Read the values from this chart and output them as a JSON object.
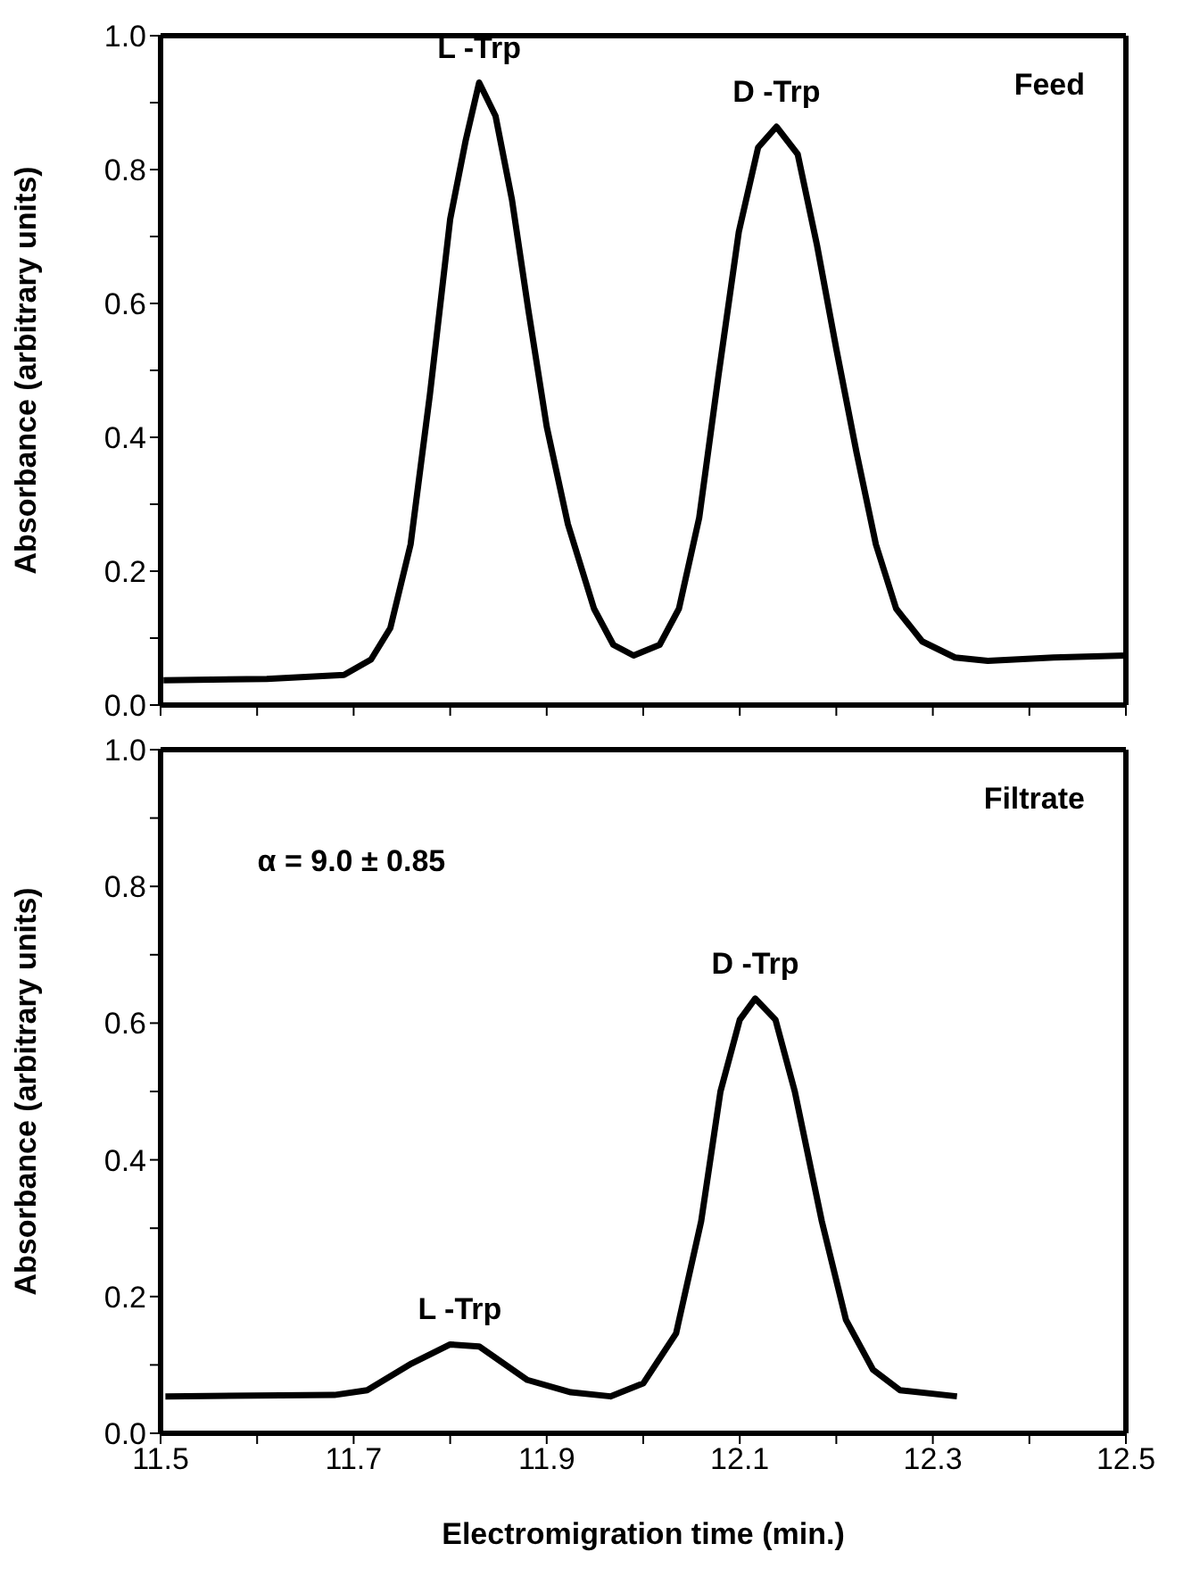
{
  "chart_data": [
    {
      "type": "line",
      "ylabel": "Absorbance (arbitrary units)",
      "annotations": [
        "Feed",
        {
          "text": "L -Trp",
          "x": 11.83,
          "y": 0.93
        },
        {
          "text": "D -Trp",
          "x": 12.138,
          "y": 0.864
        }
      ],
      "x": [
        11.503,
        11.61,
        11.69,
        11.718,
        11.738,
        11.759,
        11.779,
        11.8,
        11.816,
        11.83,
        11.847,
        11.864,
        11.881,
        11.9,
        11.922,
        11.949,
        11.969,
        11.99,
        12.017,
        12.037,
        12.058,
        12.078,
        12.099,
        12.119,
        12.138,
        12.16,
        12.18,
        12.2,
        12.221,
        12.241,
        12.262,
        12.289,
        12.323,
        12.357,
        12.425,
        12.5
      ],
      "values": [
        0.037,
        0.039,
        0.045,
        0.068,
        0.115,
        0.24,
        0.464,
        0.726,
        0.843,
        0.93,
        0.88,
        0.755,
        0.59,
        0.416,
        0.27,
        0.144,
        0.09,
        0.074,
        0.09,
        0.144,
        0.28,
        0.493,
        0.707,
        0.833,
        0.864,
        0.823,
        0.687,
        0.532,
        0.377,
        0.24,
        0.144,
        0.095,
        0.071,
        0.066,
        0.071,
        0.074
      ],
      "color": "#000000",
      "marker": "none",
      "line_style": "solid",
      "tick_labels": "y",
      "xlim": [
        11.5,
        12.5
      ],
      "xticks": [
        {
          "value": 11.5,
          "label": null
        },
        {
          "value": 11.6,
          "label": null
        },
        {
          "value": 11.7,
          "label": null
        },
        {
          "value": 11.8,
          "label": null
        },
        {
          "value": 11.9,
          "label": null
        },
        {
          "value": 12.0,
          "label": null
        },
        {
          "value": 12.1,
          "label": null
        },
        {
          "value": 12.2,
          "label": null
        },
        {
          "value": 12.3,
          "label": null
        },
        {
          "value": 12.4,
          "label": null
        },
        {
          "value": 12.5,
          "label": null
        }
      ],
      "ylim": [
        0,
        1.0
      ],
      "yticks": [
        {
          "value": 0,
          "label": "0.0"
        },
        {
          "value": 0.1,
          "label": null
        },
        0.2,
        {
          "value": 0.3,
          "label": null
        },
        0.4,
        {
          "value": 0.5,
          "label": null
        },
        0.6,
        {
          "value": 0.7,
          "label": null
        },
        0.8,
        {
          "value": 0.9,
          "label": null
        },
        {
          "value": 1.0,
          "label": "1.0"
        }
      ]
    },
    {
      "type": "line",
      "ylabel": "Absorbance (arbitrary units)",
      "xlabel": "Electromigration time (min.)",
      "annotations": [
        "Filtrate",
        "α = 9.0 ± 0.85",
        {
          "text": "L -Trp",
          "x": 11.81,
          "y": 0.13
        },
        {
          "text": "D -Trp",
          "x": 12.116,
          "y": 0.636
        }
      ],
      "x": [
        11.505,
        11.68,
        11.714,
        11.76,
        11.8,
        11.83,
        11.88,
        11.925,
        11.966,
        12.0,
        12.034,
        12.06,
        12.08,
        12.1,
        12.116,
        12.137,
        12.157,
        12.185,
        12.21,
        12.238,
        12.266,
        12.325
      ],
      "values": [
        0.054,
        0.056,
        0.063,
        0.102,
        0.13,
        0.127,
        0.078,
        0.06,
        0.054,
        0.073,
        0.146,
        0.31,
        0.5,
        0.605,
        0.636,
        0.605,
        0.5,
        0.31,
        0.166,
        0.093,
        0.063,
        0.054
      ],
      "color": "#000000",
      "marker": "none",
      "line_style": "solid",
      "xlim": [
        11.5,
        12.5
      ],
      "xticks": [
        11.5,
        {
          "value": 11.6,
          "label": null
        },
        11.7,
        {
          "value": 11.8,
          "label": null
        },
        11.9,
        {
          "value": 12.0,
          "label": null
        },
        12.1,
        {
          "value": 12.2,
          "label": null
        },
        12.3,
        {
          "value": 12.4,
          "label": null
        },
        12.5
      ],
      "ylim": [
        0,
        1.0
      ],
      "yticks": [
        {
          "value": 0,
          "label": "0.0"
        },
        {
          "value": 0.1,
          "label": null
        },
        0.2,
        {
          "value": 0.3,
          "label": null
        },
        0.4,
        {
          "value": 0.5,
          "label": null
        },
        0.6,
        {
          "value": 0.7,
          "label": null
        },
        0.8,
        {
          "value": 0.9,
          "label": null
        },
        {
          "value": 1.0,
          "label": "1.0"
        }
      ]
    }
  ]
}
